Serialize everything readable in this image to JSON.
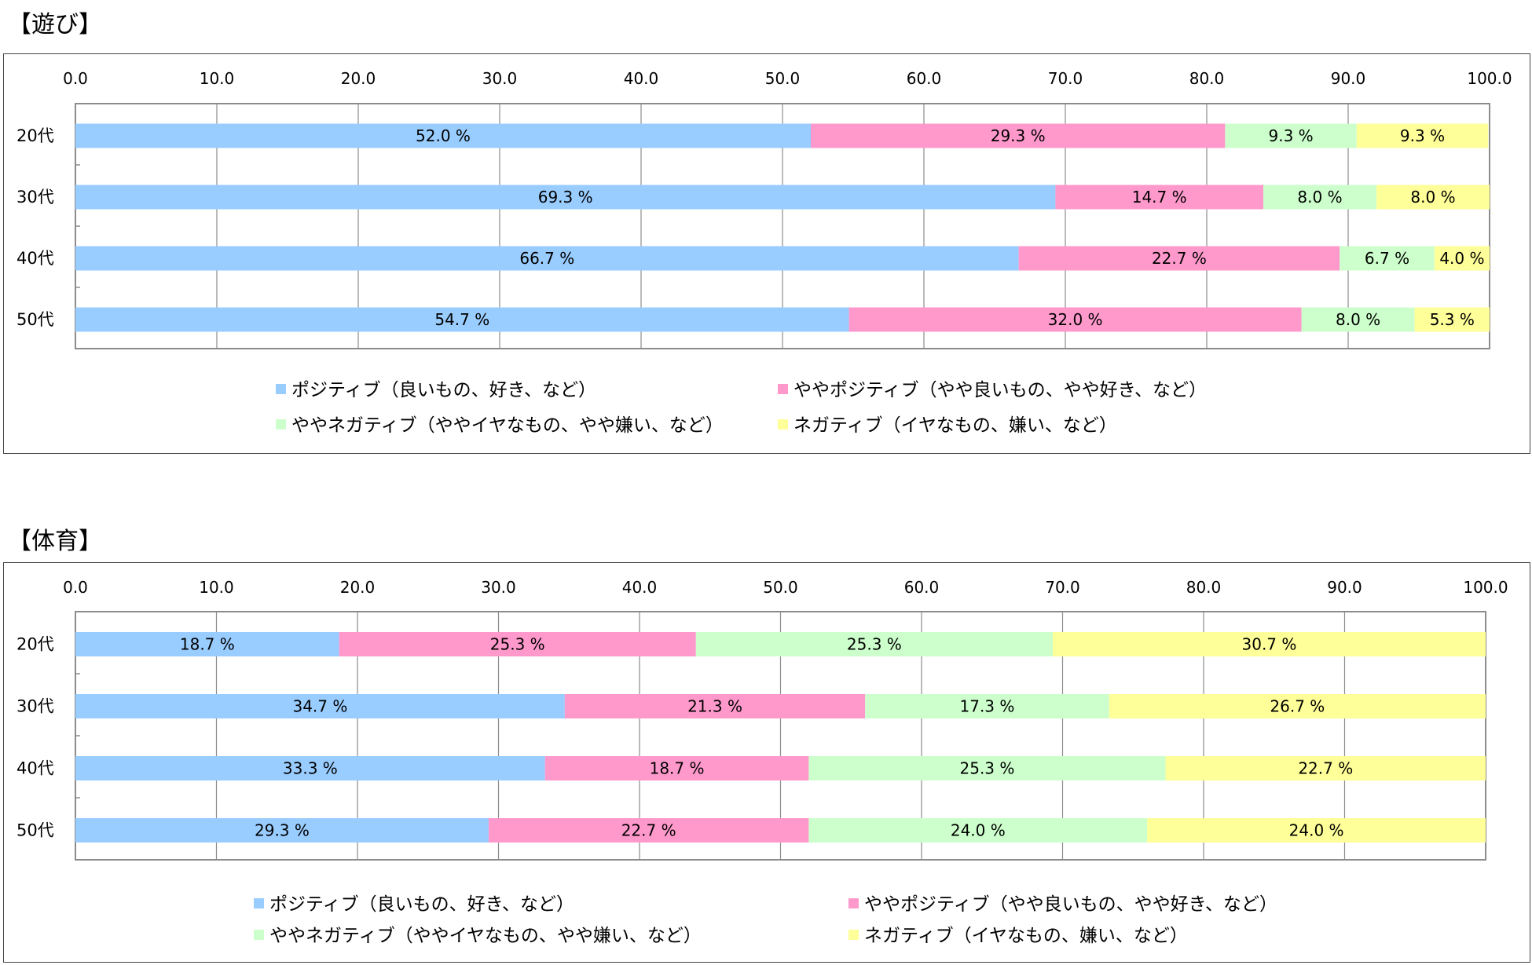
{
  "chart_data": [
    {
      "type": "bar",
      "orientation": "horizontal",
      "stacked": true,
      "title": "【遊び】",
      "categories": [
        "20代",
        "30代",
        "40代",
        "50代"
      ],
      "xlim": [
        0,
        100
      ],
      "ticks": [
        "0.0",
        "10.0",
        "20.0",
        "30.0",
        "40.0",
        "50.0",
        "60.0",
        "70.0",
        "80.0",
        "90.0",
        "100.0"
      ],
      "grid": true,
      "legend_position": "bottom",
      "value_suffix": " %",
      "series": [
        {
          "name": "ポジティブ（良いもの、好き、など）",
          "color": "#99ccff",
          "values": [
            52.0,
            69.3,
            66.7,
            54.7
          ]
        },
        {
          "name": "ややポジティブ（やや良いもの、やや好き、など）",
          "color": "#ff99cc",
          "values": [
            29.3,
            14.7,
            22.7,
            32.0
          ]
        },
        {
          "name": "ややネガティブ（ややイヤなもの、やや嫌い、など）",
          "color": "#ccffcc",
          "values": [
            9.3,
            8.0,
            6.7,
            8.0
          ]
        },
        {
          "name": "ネガティブ（イヤなもの、嫌い、など）",
          "color": "#ffff99",
          "values": [
            9.3,
            8.0,
            4.0,
            5.3
          ]
        }
      ]
    },
    {
      "type": "bar",
      "orientation": "horizontal",
      "stacked": true,
      "title": "【体育】",
      "categories": [
        "20代",
        "30代",
        "40代",
        "50代"
      ],
      "xlim": [
        0,
        100
      ],
      "ticks": [
        "0.0",
        "10.0",
        "20.0",
        "30.0",
        "40.0",
        "50.0",
        "60.0",
        "70.0",
        "80.0",
        "90.0",
        "100.0"
      ],
      "grid": true,
      "legend_position": "bottom",
      "value_suffix": " %",
      "series": [
        {
          "name": "ポジティブ（良いもの、好き、など）",
          "color": "#99ccff",
          "values": [
            18.7,
            34.7,
            33.3,
            29.3
          ]
        },
        {
          "name": "ややポジティブ（やや良いもの、やや好き、など）",
          "color": "#ff99cc",
          "values": [
            25.3,
            21.3,
            18.7,
            22.7
          ]
        },
        {
          "name": "ややネガティブ（ややイヤなもの、やや嫌い、など）",
          "color": "#ccffcc",
          "values": [
            25.3,
            17.3,
            25.3,
            24.0
          ]
        },
        {
          "name": "ネガティブ（イヤなもの、嫌い、など）",
          "color": "#ffff99",
          "values": [
            30.7,
            26.7,
            22.7,
            24.0
          ]
        }
      ]
    }
  ]
}
